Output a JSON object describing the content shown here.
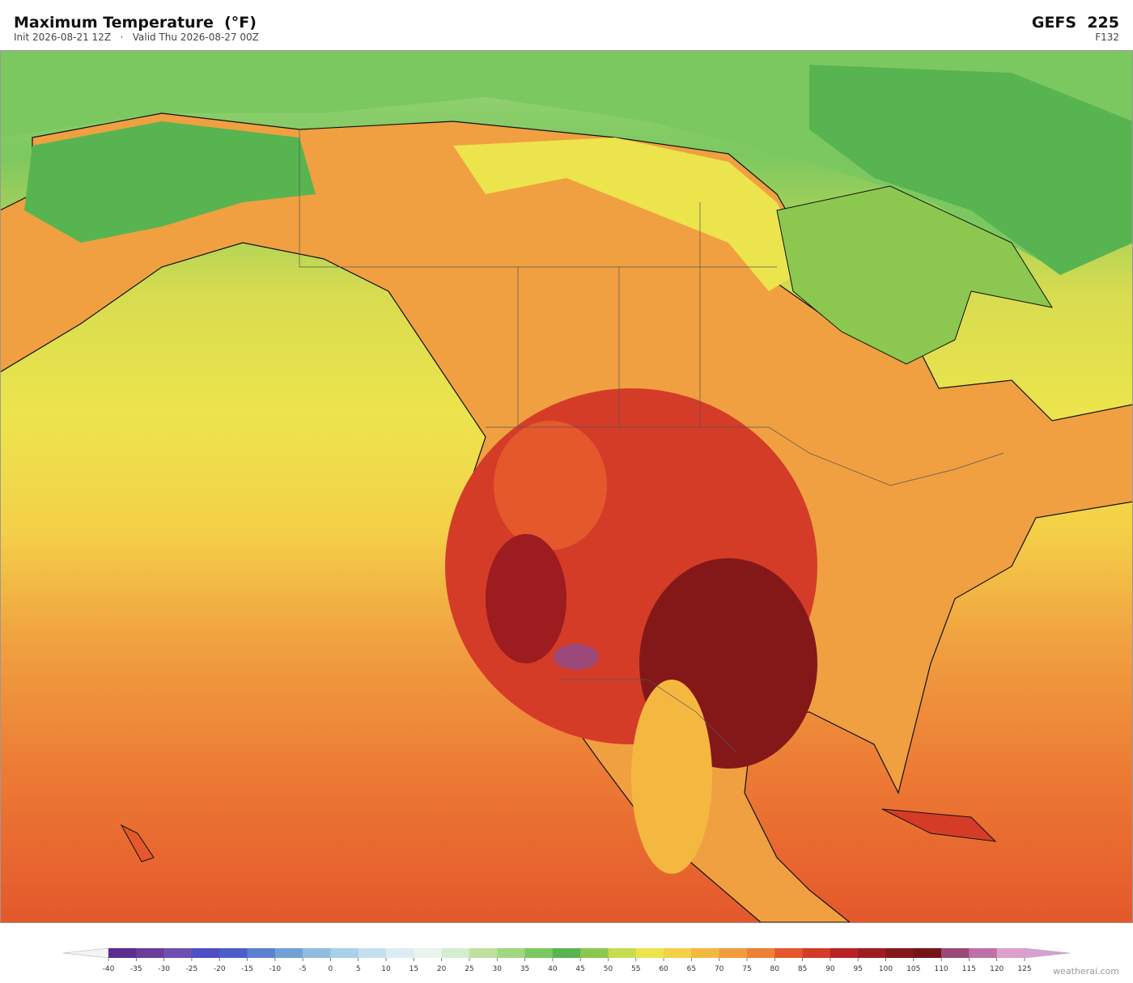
{
  "header": {
    "title": "Maximum Temperature  (°F)",
    "subtitle": "Init 2026-08-21 12Z   ·   Valid Thu 2026-08-27 00Z",
    "model": "GEFS  225",
    "forecast_hour": "F132"
  },
  "colorbar": {
    "ticks": [
      -40,
      -35,
      -30,
      -25,
      -20,
      -15,
      -10,
      -5,
      0,
      5,
      10,
      15,
      20,
      25,
      30,
      35,
      40,
      45,
      50,
      55,
      60,
      65,
      70,
      75,
      80,
      85,
      90,
      95,
      100,
      105,
      110,
      115,
      120,
      125
    ],
    "colors": [
      "#5a2d91",
      "#6a3d9a",
      "#6c4fb0",
      "#4f4fc4",
      "#4a60c8",
      "#5a80d0",
      "#74a0d8",
      "#90bce0",
      "#a8d0e8",
      "#c4e0ee",
      "#dcecf2",
      "#e8f4ec",
      "#d4ecd0",
      "#c0e0a0",
      "#a0d880",
      "#7cc860",
      "#58b450",
      "#8cc850",
      "#c8dc50",
      "#ece44c",
      "#f4d048",
      "#f4b840",
      "#f09c3c",
      "#ec8034",
      "#e4582c",
      "#d43c28",
      "#b82424",
      "#9c1c20",
      "#841818",
      "#741418",
      "#9c4878",
      "#c070a8",
      "#dca0cc"
    ],
    "under_color": "#f4f4f4",
    "over_color": "#d8a0d0"
  },
  "watermark": "weatherai.com"
}
